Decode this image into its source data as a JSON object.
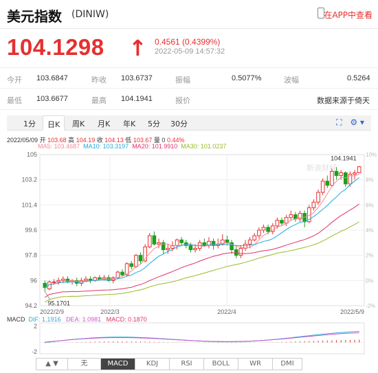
{
  "header": {
    "name": "美元指数",
    "code": "(DINIW)",
    "app_link": "在APP中查看"
  },
  "quote": {
    "price": "104.1298",
    "arrow": "↑",
    "change": "0.4561 (0.4399%)",
    "time": "2022-05-09 14:57:32"
  },
  "stats": [
    {
      "label": "今开",
      "value": "103.6847"
    },
    {
      "label": "昨收",
      "value": "103.6737"
    },
    {
      "label": "振幅",
      "value": "0.5077%"
    },
    {
      "label": "波幅",
      "value": "0.5264"
    },
    {
      "label": "最低",
      "value": "103.6677"
    },
    {
      "label": "最高",
      "value": "104.1941"
    },
    {
      "label": "报价",
      "value": ""
    },
    {
      "label": "",
      "value": "数据来源于倚天"
    }
  ],
  "tabs": [
    "1分",
    "日K",
    "周K",
    "月K",
    "年K",
    "5分",
    "30分"
  ],
  "tools": {
    "expand": "⛶",
    "settings": "⚙",
    "dropdown": "▾"
  },
  "chart_info": {
    "date": "2022/05/09",
    "open_label": "开",
    "open": "103.68",
    "high_label": "高",
    "high": "104.19",
    "close_label": "收",
    "close": "104.13",
    "low_label": "低",
    "low": "103.67",
    "vol_label": "量",
    "vol": "0",
    "pct": "0.44%"
  },
  "ma": [
    {
      "name": "MA5:",
      "value": "103.4687",
      "color": "#f08a9a"
    },
    {
      "name": "MA10:",
      "value": "103.3197",
      "color": "#22aadd"
    },
    {
      "name": "MA20:",
      "value": "101.9910",
      "color": "#e0306a"
    },
    {
      "name": "MA30:",
      "value": "101.0237",
      "color": "#99bb22"
    }
  ],
  "macd_info": {
    "label": "MACD",
    "dif": "DIF: 1.1916",
    "dea": "DEA: 1.0981",
    "macd": "MACD: 0.1870",
    "colors": {
      "dif": "#22aadd",
      "dea": "#cc55cc",
      "macd": "#e0306a"
    }
  },
  "indicators": {
    "arrows": "▲ ▼",
    "items": [
      "无",
      "MACD",
      "KDJ",
      "RSI",
      "BOLL",
      "WR",
      "DMI"
    ],
    "active": "MACD"
  },
  "chart_data": {
    "type": "candlestick",
    "y_ticks": [
      "105",
      "103.2",
      "101.4",
      "99.6",
      "97.8",
      "96",
      "94.2"
    ],
    "pct_ticks": [
      "10%",
      "8%",
      "6%",
      "4%",
      "2%",
      "0%",
      "-2%"
    ],
    "x_ticks": [
      "2022/2/9",
      "2022/3",
      "2022/4",
      "2022/5/9"
    ],
    "ylim": [
      94.2,
      105
    ],
    "max_label": "104.1941",
    "min_label": "95.1701",
    "watermark": "新浪财经",
    "macd_ticks": [
      "2",
      "-2"
    ],
    "candles": [
      [
        95.8,
        95.5,
        96.0,
        95.2
      ],
      [
        95.4,
        95.9,
        96.0,
        95.3
      ],
      [
        95.9,
        95.9,
        96.1,
        95.7
      ],
      [
        95.9,
        96.0,
        96.2,
        95.7
      ],
      [
        96.0,
        96.1,
        96.3,
        95.8
      ],
      [
        96.1,
        95.9,
        96.3,
        95.8
      ],
      [
        95.9,
        96.0,
        96.1,
        95.7
      ],
      [
        96.0,
        95.8,
        96.2,
        95.6
      ],
      [
        95.8,
        96.0,
        96.2,
        95.6
      ],
      [
        96.0,
        96.1,
        96.3,
        95.9
      ],
      [
        96.1,
        96.0,
        96.3,
        95.8
      ],
      [
        96.0,
        96.2,
        96.3,
        95.9
      ],
      [
        96.2,
        96.1,
        96.4,
        96.0
      ],
      [
        96.1,
        96.2,
        96.4,
        96.0
      ],
      [
        96.2,
        96.0,
        96.4,
        95.9
      ],
      [
        96.0,
        96.2,
        96.3,
        95.8
      ],
      [
        96.2,
        96.6,
        96.7,
        96.1
      ],
      [
        96.6,
        96.4,
        96.8,
        96.3
      ],
      [
        96.4,
        97.2,
        97.3,
        96.3
      ],
      [
        97.2,
        97.0,
        97.4,
        96.8
      ],
      [
        97.0,
        97.8,
        97.9,
        96.9
      ],
      [
        97.8,
        97.4,
        98.0,
        97.2
      ],
      [
        97.4,
        98.4,
        98.6,
        97.3
      ],
      [
        98.4,
        99.2,
        99.4,
        98.3
      ],
      [
        99.2,
        98.6,
        99.5,
        98.5
      ],
      [
        98.6,
        98.7,
        99.0,
        98.3
      ],
      [
        98.7,
        98.2,
        98.9,
        97.9
      ],
      [
        98.2,
        98.3,
        98.6,
        97.9
      ],
      [
        98.3,
        98.5,
        98.8,
        98.1
      ],
      [
        98.5,
        98.9,
        99.0,
        98.2
      ],
      [
        98.9,
        98.7,
        99.1,
        98.5
      ],
      [
        98.7,
        98.5,
        98.9,
        98.3
      ],
      [
        98.5,
        98.2,
        98.7,
        98.0
      ],
      [
        98.2,
        98.3,
        98.6,
        98.0
      ],
      [
        98.3,
        98.7,
        98.9,
        98.1
      ],
      [
        98.7,
        98.5,
        99.0,
        98.4
      ],
      [
        98.5,
        98.8,
        99.1,
        98.3
      ],
      [
        98.8,
        98.5,
        99.0,
        98.2
      ],
      [
        98.5,
        98.6,
        99.0,
        98.3
      ],
      [
        98.6,
        98.9,
        99.3,
        98.5
      ],
      [
        98.9,
        98.7,
        99.2,
        98.5
      ],
      [
        98.7,
        98.2,
        98.9,
        97.9
      ],
      [
        98.2,
        97.8,
        98.4,
        97.6
      ],
      [
        97.8,
        98.3,
        98.5,
        97.6
      ],
      [
        98.3,
        98.6,
        98.9,
        98.1
      ],
      [
        98.6,
        98.9,
        99.1,
        98.3
      ],
      [
        98.9,
        99.2,
        99.4,
        98.8
      ],
      [
        99.2,
        99.6,
        99.8,
        99.0
      ],
      [
        99.6,
        99.8,
        100.0,
        99.4
      ],
      [
        99.8,
        99.5,
        100.0,
        99.3
      ],
      [
        99.5,
        99.9,
        100.1,
        99.3
      ],
      [
        99.9,
        100.3,
        100.5,
        99.7
      ],
      [
        100.3,
        100.1,
        100.5,
        99.9
      ],
      [
        100.1,
        100.5,
        100.7,
        99.9
      ],
      [
        100.5,
        100.7,
        101.0,
        100.3
      ],
      [
        100.7,
        100.4,
        100.9,
        100.2
      ],
      [
        100.4,
        100.8,
        101.0,
        100.2
      ],
      [
        100.8,
        100.2,
        101.0,
        99.8
      ],
      [
        100.2,
        101.2,
        101.4,
        100.1
      ],
      [
        101.2,
        101.6,
        101.8,
        101.0
      ],
      [
        101.6,
        102.3,
        102.5,
        101.4
      ],
      [
        102.3,
        103.1,
        103.3,
        102.1
      ],
      [
        103.1,
        102.8,
        103.5,
        102.6
      ],
      [
        102.8,
        103.8,
        104.0,
        102.7
      ],
      [
        103.8,
        103.5,
        104.1,
        103.2
      ],
      [
        103.5,
        103.7,
        103.9,
        103.2
      ],
      [
        103.7,
        102.9,
        103.8,
        102.7
      ],
      [
        102.9,
        103.6,
        103.8,
        102.7
      ],
      [
        103.6,
        103.7,
        103.9,
        103.2
      ],
      [
        103.7,
        104.13,
        104.19,
        103.67
      ]
    ]
  }
}
